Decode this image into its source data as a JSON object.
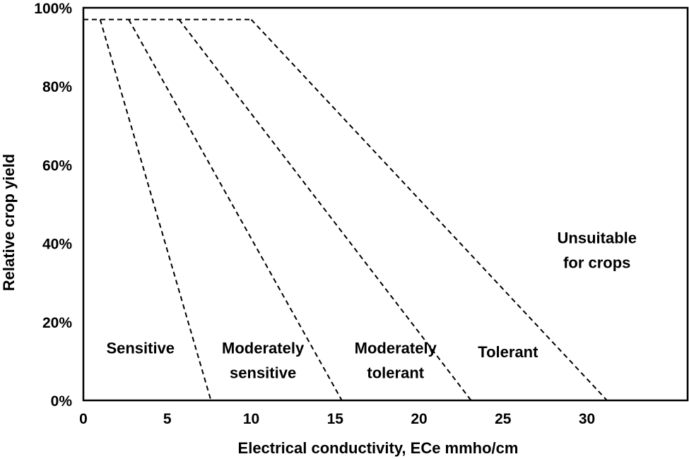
{
  "chart_data": {
    "type": "line",
    "xlabel": "Electrical conductivity, ECe mmho/cm",
    "ylabel": "Relative crop yield",
    "xlim": [
      0,
      36
    ],
    "ylim": [
      0,
      100
    ],
    "x_ticks": [
      0,
      5,
      10,
      15,
      20,
      25,
      30
    ],
    "x_tick_labels": [
      "0",
      "5",
      "10",
      "15",
      "20",
      "25",
      "30"
    ],
    "y_ticks": [
      0,
      20,
      40,
      60,
      80,
      100
    ],
    "y_tick_labels": [
      "0%",
      "20%",
      "40%",
      "60%",
      "80%",
      "100%"
    ],
    "grid": false,
    "line_style": "dashed",
    "top_line": {
      "y": 97,
      "x": [
        0,
        10
      ]
    },
    "series": [
      {
        "x": [
          1.0,
          7.6
        ],
        "y": [
          97,
          0
        ]
      },
      {
        "x": [
          2.7,
          15.4
        ],
        "y": [
          97,
          0
        ]
      },
      {
        "x": [
          5.7,
          23.1
        ],
        "y": [
          97,
          0
        ]
      },
      {
        "x": [
          10.0,
          31.2
        ],
        "y": [
          97,
          0
        ]
      }
    ],
    "region_labels": [
      {
        "lines": [
          "Sensitive"
        ],
        "x": 3.4,
        "y": 12
      },
      {
        "lines": [
          "Moderately",
          "sensitive"
        ],
        "x": 10.7,
        "y": 12
      },
      {
        "lines": [
          "Moderately",
          "tolerant"
        ],
        "x": 18.6,
        "y": 12
      },
      {
        "lines": [
          "Tolerant"
        ],
        "x": 25.3,
        "y": 11
      },
      {
        "lines": [
          "Unsuitable",
          "for crops"
        ],
        "x": 30.6,
        "y": 40
      }
    ]
  }
}
